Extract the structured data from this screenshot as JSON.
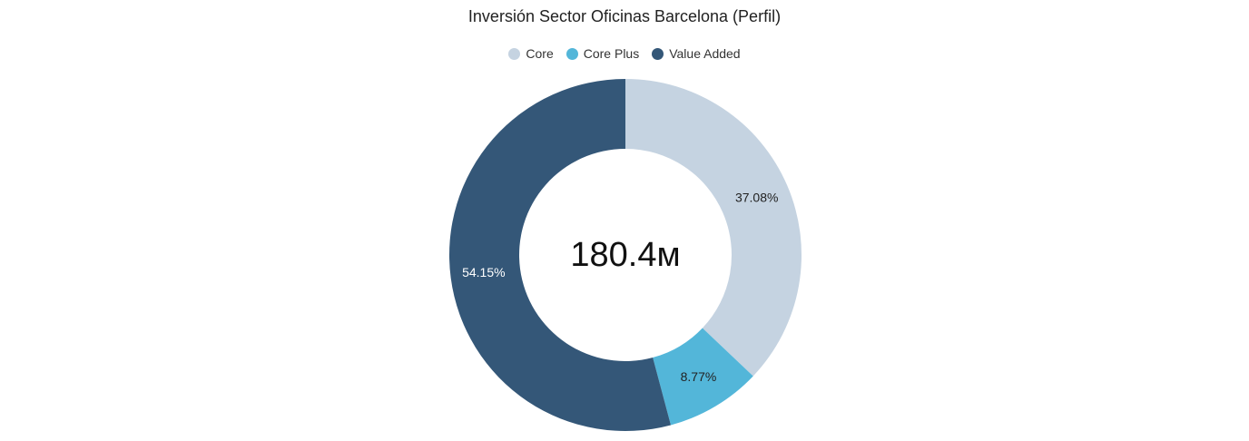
{
  "chart_data": {
    "type": "pie",
    "title": "Inversión Sector Oficinas Barcelona (Perfil)",
    "center_label": "180.4м",
    "legend_position": "top",
    "slices": [
      {
        "name": "Core",
        "label": "37.08%",
        "value": 37.08,
        "color": "#c5d3e1",
        "label_color": "#222222"
      },
      {
        "name": "Core Plus",
        "label": "8.77%",
        "value": 8.77,
        "color": "#53b6d9",
        "label_color": "#222222"
      },
      {
        "name": "Value Added",
        "label": "54.15%",
        "value": 54.15,
        "color": "#345778",
        "label_color": "#ffffff"
      }
    ]
  }
}
